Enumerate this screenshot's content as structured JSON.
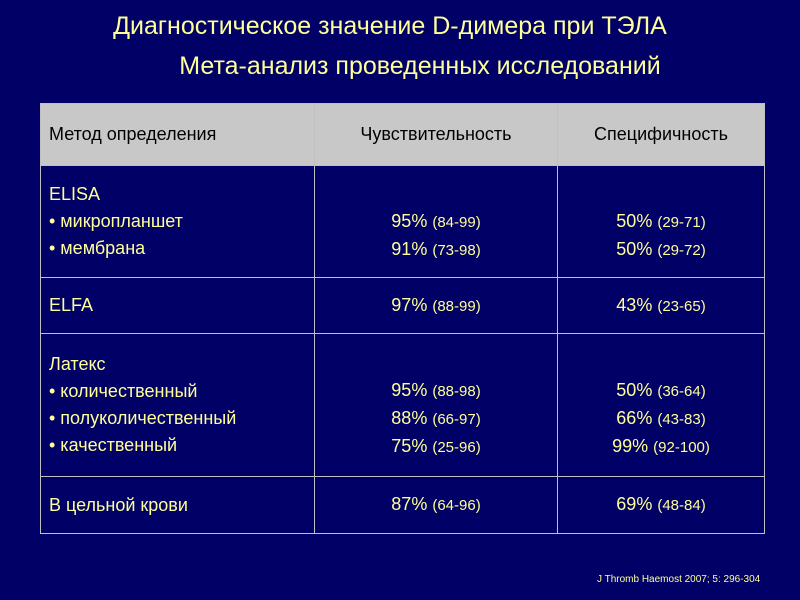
{
  "title": {
    "line1": "Диагностическое значение D-димера при ТЭЛА",
    "line2": "Мета-анализ проведенных исследований"
  },
  "table": {
    "headers": [
      "Метод определения",
      "Чувствительность",
      "Специфичность"
    ],
    "rows": [
      {
        "method": [
          "ELISA",
          "• микропланшет",
          "• мембрана"
        ],
        "sensitivity": [
          {
            "pct": "",
            "ci": ""
          },
          {
            "pct": "95%",
            "ci": "(84-99)"
          },
          {
            "pct": "91%",
            "ci": "(73-98)"
          }
        ],
        "specificity": [
          {
            "pct": "",
            "ci": ""
          },
          {
            "pct": "50%",
            "ci": "(29-71)"
          },
          {
            "pct": "50%",
            "ci": "(29-72)"
          }
        ]
      },
      {
        "method": [
          "ELFA"
        ],
        "sensitivity": [
          {
            "pct": "97%",
            "ci": "(88-99)"
          }
        ],
        "specificity": [
          {
            "pct": "43%",
            "ci": "(23-65)"
          }
        ]
      },
      {
        "method": [
          "Латекс",
          "• количественный",
          "• полуколичественный",
          "• качественный"
        ],
        "sensitivity": [
          {
            "pct": "",
            "ci": ""
          },
          {
            "pct": "95%",
            "ci": "(88-98)"
          },
          {
            "pct": "88%",
            "ci": "(66-97)"
          },
          {
            "pct": "75%",
            "ci": "(25-96)"
          }
        ],
        "specificity": [
          {
            "pct": "",
            "ci": ""
          },
          {
            "pct": "50%",
            "ci": "(36-64)"
          },
          {
            "pct": "66%",
            "ci": "(43-83)"
          },
          {
            "pct": "99%",
            "ci": "(92-100)"
          }
        ]
      },
      {
        "method": [
          "В цельной крови"
        ],
        "sensitivity": [
          {
            "pct": "87%",
            "ci": "(64-96)"
          }
        ],
        "specificity": [
          {
            "pct": "69%",
            "ci": "(48-84)"
          }
        ]
      }
    ]
  },
  "citation": "J Thromb  Haemost  2007; 5: 296-304",
  "colors": {
    "background": "#000066",
    "text": "#ffff99",
    "header_bg": "#c8c8c8",
    "border": "#c0c0c0"
  }
}
